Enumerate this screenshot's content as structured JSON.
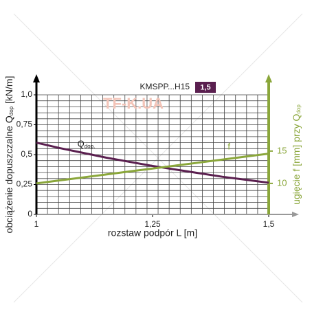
{
  "chart_data": {
    "type": "line",
    "title": "KMSPP...H15",
    "badge": "1,5",
    "watermark": "TF-K.UA",
    "xlabel": "rozstaw podpór L [m]",
    "ylabel": [
      "obciążenie dopuszczalne Q",
      "dop",
      " [kN/m]"
    ],
    "y2label": [
      "ugięcie f [mm] przy Q",
      "dop"
    ],
    "x": [
      1,
      1.05,
      1.1,
      1.15,
      1.2,
      1.25,
      1.3,
      1.35,
      1.4,
      1.45,
      1.5
    ],
    "series": [
      {
        "name": "Q",
        "name_sub": "dop.",
        "color": "#5a1f4f",
        "values": [
          0.6,
          0.555,
          0.515,
          0.475,
          0.44,
          0.405,
          0.375,
          0.345,
          0.315,
          0.29,
          0.265
        ]
      },
      {
        "name": "f",
        "color": "#8aa63a",
        "axis": "y2",
        "values": [
          10,
          10.46,
          10.92,
          11.38,
          11.84,
          12.3,
          12.76,
          13.22,
          13.68,
          14.14,
          14.6
        ]
      }
    ],
    "xlim": [
      1,
      1.5
    ],
    "xticks": [
      1,
      {
        "value": 1.25,
        "label": "1,25"
      },
      {
        "value": 1.5,
        "label": "1,5"
      }
    ],
    "ylim": [
      0,
      1
    ],
    "yticks": [
      0,
      {
        "value": 0.25,
        "label": "0,25"
      },
      {
        "value": 0.5,
        "label": "0,5"
      },
      {
        "value": 0.75,
        "label": "0,75"
      },
      {
        "value": 1,
        "label": "1,0"
      }
    ],
    "y2lim": [
      5.2,
      23.7
    ],
    "y2ticks": [
      10,
      15
    ],
    "grid": true
  }
}
